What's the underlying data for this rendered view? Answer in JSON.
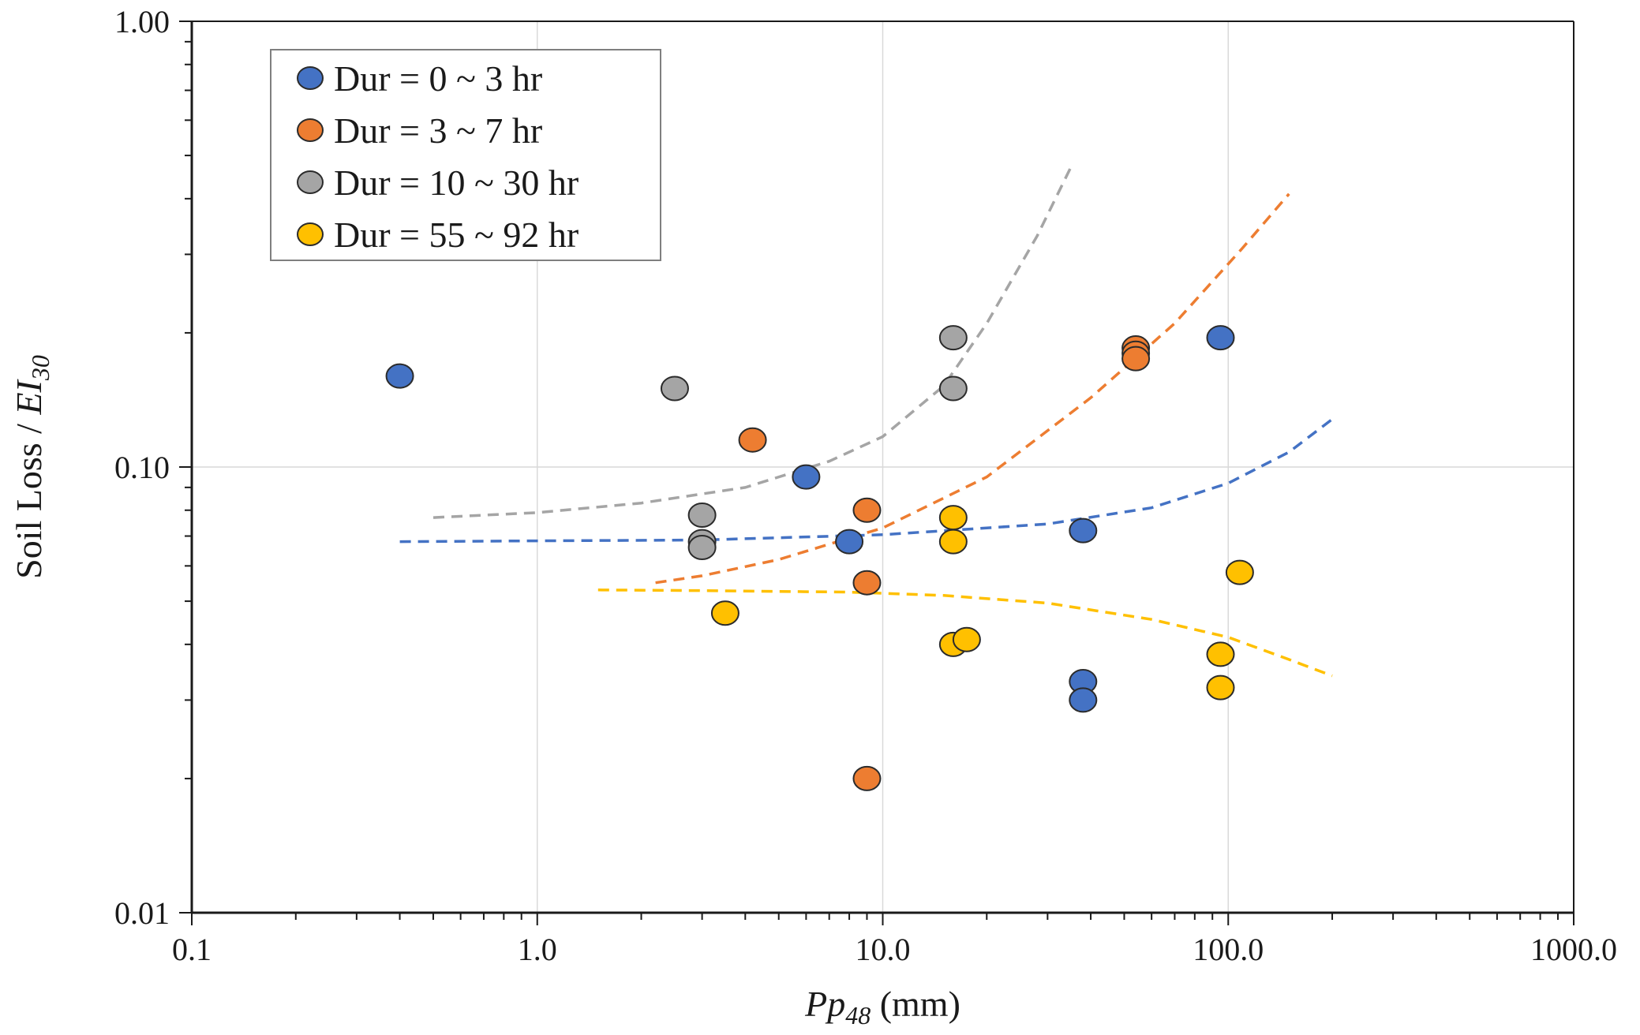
{
  "chart_data": {
    "type": "scatter",
    "title": "",
    "xlabel": {
      "italic": "Pp",
      "sub": "48",
      "rest": " (mm)"
    },
    "ylabel": {
      "rest": "Soil Loss / ",
      "italic": "EI",
      "sub": "30"
    },
    "xscale": "log",
    "yscale": "log",
    "xlim": [
      0.1,
      1000
    ],
    "ylim": [
      0.01,
      1
    ],
    "x_ticks": [
      {
        "value": 0.1,
        "label": "0.1"
      },
      {
        "value": 1,
        "label": "1.0"
      },
      {
        "value": 10,
        "label": "10.0"
      },
      {
        "value": 100,
        "label": "100.0"
      },
      {
        "value": 1000,
        "label": "1000.0"
      }
    ],
    "y_ticks": [
      {
        "value": 0.01,
        "label": "0.01"
      },
      {
        "value": 0.1,
        "label": "0.10"
      },
      {
        "value": 1,
        "label": "1.00"
      }
    ],
    "grid": true,
    "legend_position": "top-left",
    "series": [
      {
        "name": "Dur = 0 ~ 3 hr",
        "color": "#4472c4",
        "points": [
          [
            0.4,
            0.16
          ],
          [
            6.0,
            0.095
          ],
          [
            8.0,
            0.068
          ],
          [
            38,
            0.072
          ],
          [
            38,
            0.033
          ],
          [
            38,
            0.03
          ],
          [
            95,
            0.195
          ]
        ],
        "trend": [
          [
            0.4,
            0.068
          ],
          [
            1,
            0.0683
          ],
          [
            3,
            0.0686
          ],
          [
            10,
            0.0705
          ],
          [
            30,
            0.0745
          ],
          [
            60,
            0.081
          ],
          [
            100,
            0.092
          ],
          [
            150,
            0.108
          ],
          [
            200,
            0.128
          ]
        ]
      },
      {
        "name": "Dur = 3 ~ 7 hr",
        "color": "#ed7d31",
        "points": [
          [
            4.2,
            0.115
          ],
          [
            9.0,
            0.08
          ],
          [
            9.0,
            0.055
          ],
          [
            9.0,
            0.02
          ],
          [
            54,
            0.185
          ],
          [
            54,
            0.18
          ],
          [
            54,
            0.175
          ]
        ],
        "trend": [
          [
            2.2,
            0.055
          ],
          [
            3,
            0.057
          ],
          [
            5,
            0.062
          ],
          [
            10,
            0.073
          ],
          [
            20,
            0.095
          ],
          [
            40,
            0.143
          ],
          [
            70,
            0.21
          ],
          [
            110,
            0.31
          ],
          [
            150,
            0.41
          ]
        ]
      },
      {
        "name": "Dur = 10 ~ 30 hr",
        "color": "#a5a5a5",
        "points": [
          [
            2.5,
            0.15
          ],
          [
            3.0,
            0.078
          ],
          [
            3.0,
            0.068
          ],
          [
            3.0,
            0.066
          ],
          [
            16,
            0.195
          ],
          [
            16,
            0.15
          ]
        ],
        "trend": [
          [
            0.5,
            0.077
          ],
          [
            1,
            0.079
          ],
          [
            2,
            0.083
          ],
          [
            4,
            0.09
          ],
          [
            7,
            0.103
          ],
          [
            10,
            0.117
          ],
          [
            15,
            0.152
          ],
          [
            20,
            0.21
          ],
          [
            28,
            0.33
          ],
          [
            35,
            0.47
          ]
        ]
      },
      {
        "name": "Dur = 55 ~ 92 hr",
        "color": "#ffc000",
        "points": [
          [
            3.5,
            0.047
          ],
          [
            16,
            0.077
          ],
          [
            16,
            0.068
          ],
          [
            16,
            0.04
          ],
          [
            17.5,
            0.041
          ],
          [
            95,
            0.038
          ],
          [
            95,
            0.032
          ],
          [
            108,
            0.058
          ]
        ],
        "trend": [
          [
            1.5,
            0.053
          ],
          [
            3,
            0.0528
          ],
          [
            8,
            0.0524
          ],
          [
            15,
            0.0515
          ],
          [
            30,
            0.0495
          ],
          [
            60,
            0.0455
          ],
          [
            100,
            0.0415
          ],
          [
            150,
            0.037
          ],
          [
            200,
            0.034
          ]
        ]
      }
    ]
  }
}
